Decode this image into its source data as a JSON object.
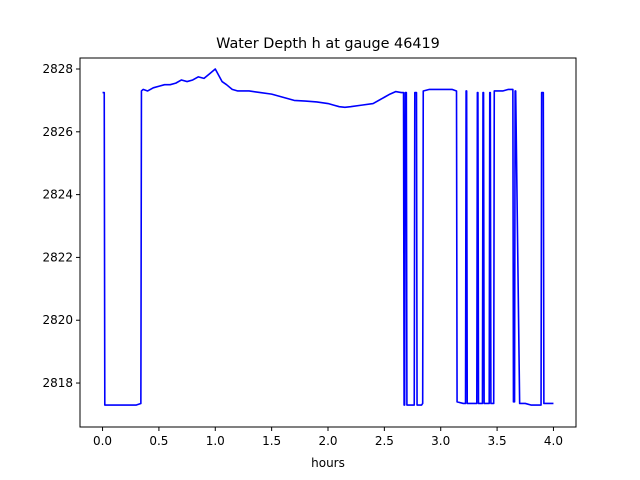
{
  "chart_data": {
    "type": "line",
    "title": "Water Depth h at gauge 46419",
    "xlabel": "hours",
    "ylabel": "",
    "xlim": [
      -0.2,
      4.2
    ],
    "ylim": [
      2816.6,
      2828.35
    ],
    "xticks": [
      0.0,
      0.5,
      1.0,
      1.5,
      2.0,
      2.5,
      3.0,
      3.5,
      4.0
    ],
    "xtick_labels": [
      "0.0",
      "0.5",
      "1.0",
      "1.5",
      "2.0",
      "2.5",
      "3.0",
      "3.5",
      "4.0"
    ],
    "yticks": [
      2818,
      2820,
      2822,
      2824,
      2826,
      2828
    ],
    "ytick_labels": [
      "2818",
      "2820",
      "2822",
      "2824",
      "2826",
      "2828"
    ],
    "grid": false,
    "line_color": "#0000ff",
    "series": [
      {
        "name": "",
        "x": [
          0.0,
          0.015,
          0.02,
          0.05,
          0.1,
          0.2,
          0.3,
          0.34,
          0.345,
          0.36,
          0.4,
          0.45,
          0.5,
          0.55,
          0.6,
          0.65,
          0.7,
          0.75,
          0.8,
          0.85,
          0.9,
          0.95,
          1.0,
          1.03,
          1.06,
          1.1,
          1.15,
          1.2,
          1.3,
          1.4,
          1.5,
          1.6,
          1.7,
          1.8,
          1.9,
          2.0,
          2.05,
          2.1,
          2.15,
          2.2,
          2.3,
          2.4,
          2.5,
          2.55,
          2.6,
          2.65,
          2.67,
          2.675,
          2.68,
          2.685,
          2.695,
          2.7,
          2.705,
          2.75,
          2.765,
          2.77,
          2.775,
          2.785,
          2.79,
          2.8,
          2.82,
          2.83,
          2.84,
          2.845,
          2.9,
          3.0,
          3.1,
          3.14,
          3.145,
          3.2,
          3.22,
          3.225,
          3.23,
          3.235,
          3.245,
          3.26,
          3.31,
          3.32,
          3.325,
          3.33,
          3.335,
          3.34,
          3.37,
          3.375,
          3.38,
          3.385,
          3.4,
          3.42,
          3.43,
          3.435,
          3.44,
          3.445,
          3.46,
          3.47,
          3.475,
          3.48,
          3.485,
          3.5,
          3.55,
          3.6,
          3.64,
          3.645,
          3.655,
          3.66,
          3.665,
          3.7,
          3.75,
          3.8,
          3.85,
          3.89,
          3.895,
          3.9,
          3.91,
          3.915,
          3.92,
          3.95,
          4.0
        ],
        "values": [
          2827.25,
          2827.25,
          2817.3,
          2817.3,
          2817.3,
          2817.3,
          2817.3,
          2817.35,
          2827.3,
          2827.35,
          2827.3,
          2827.4,
          2827.45,
          2827.5,
          2827.5,
          2827.55,
          2827.65,
          2827.6,
          2827.65,
          2827.75,
          2827.7,
          2827.85,
          2828.0,
          2827.8,
          2827.6,
          2827.5,
          2827.35,
          2827.3,
          2827.3,
          2827.25,
          2827.2,
          2827.1,
          2827.0,
          2826.98,
          2826.95,
          2826.9,
          2826.85,
          2826.8,
          2826.78,
          2826.8,
          2826.85,
          2826.9,
          2827.1,
          2827.2,
          2827.28,
          2827.25,
          2827.25,
          2817.3,
          2817.3,
          2827.25,
          2827.25,
          2817.3,
          2817.3,
          2817.3,
          2817.3,
          2827.25,
          2827.25,
          2827.25,
          2817.3,
          2817.3,
          2817.3,
          2817.3,
          2817.35,
          2827.3,
          2827.35,
          2827.35,
          2827.35,
          2827.3,
          2817.4,
          2817.35,
          2817.35,
          2827.3,
          2827.3,
          2817.35,
          2817.35,
          2817.35,
          2817.35,
          2817.35,
          2827.25,
          2827.25,
          2817.35,
          2817.35,
          2817.35,
          2827.25,
          2827.25,
          2817.35,
          2817.35,
          2817.35,
          2817.35,
          2827.25,
          2827.25,
          2817.35,
          2817.35,
          2817.35,
          2827.3,
          2827.3,
          2827.3,
          2827.3,
          2827.3,
          2827.35,
          2827.35,
          2817.4,
          2817.4,
          2827.3,
          2827.3,
          2817.35,
          2817.35,
          2817.3,
          2817.3,
          2817.3,
          2827.25,
          2827.25,
          2827.25,
          2817.35,
          2817.35,
          2817.35,
          2817.35
        ]
      }
    ]
  }
}
